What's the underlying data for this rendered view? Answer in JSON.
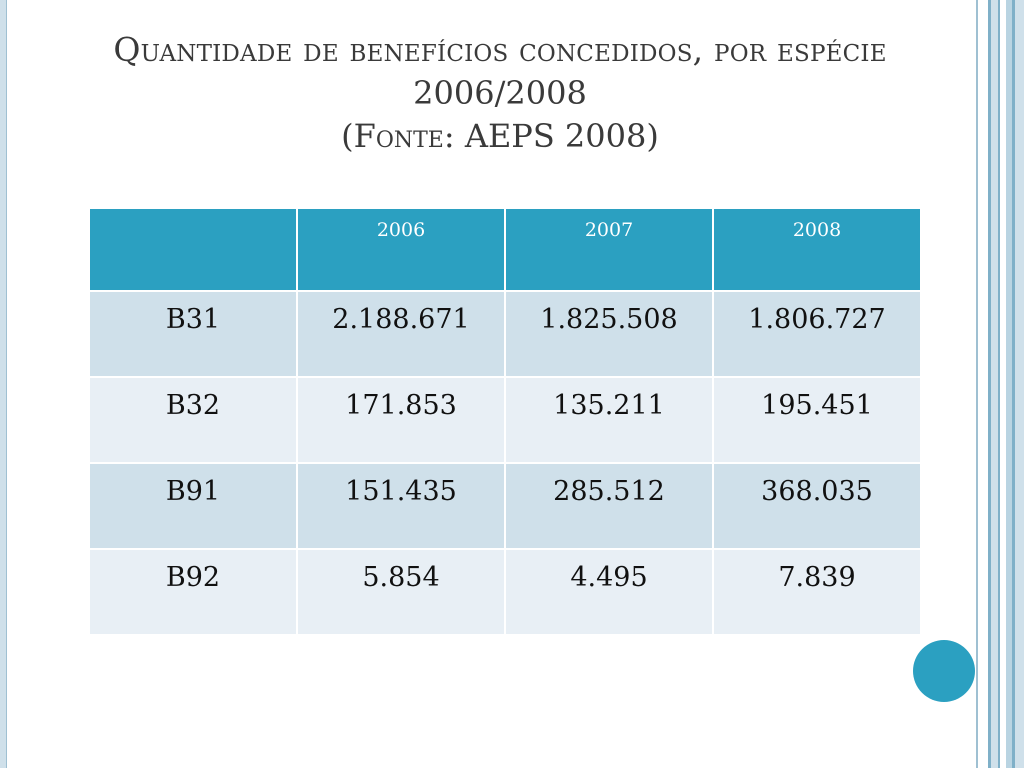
{
  "slide": {
    "title_line1": "Quantidade de benefícios concedidos, por espécie",
    "title_line2": "2006/2008",
    "title_line3_prefix": "(",
    "title_line3_fonte": "Fonte:",
    "title_line3_rest": " AEPS 2008)"
  },
  "table": {
    "headers": [
      "",
      "2006",
      "2007",
      "2008"
    ],
    "rows": [
      [
        "B31",
        "2.188.671",
        "1.825.508",
        "1.806.727"
      ],
      [
        "B32",
        "171.853",
        "135.211",
        "195.451"
      ],
      [
        "B91",
        "151.435",
        "285.512",
        "368.035"
      ],
      [
        "B92",
        "5.854",
        "4.495",
        "7.839"
      ]
    ]
  },
  "colors": {
    "accent": "#2ba0c1",
    "row_odd": "#cfe0ea",
    "row_even": "#e8eff5",
    "title_text": "#3a3a3a"
  }
}
